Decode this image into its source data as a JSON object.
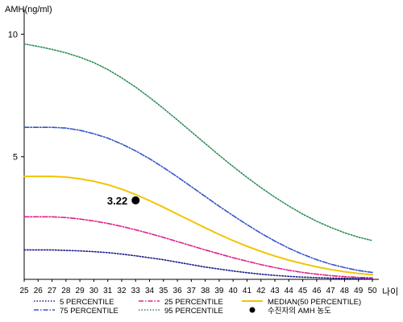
{
  "chart_data": {
    "type": "line",
    "ylabel": "AMH(ng/ml)",
    "xlabel": "나이",
    "ylim": [
      0,
      11
    ],
    "yticks": [
      5,
      10
    ],
    "ytick_labels": [
      "5",
      "10"
    ],
    "xlim": [
      25,
      50
    ],
    "x": [
      25,
      26,
      27,
      28,
      29,
      30,
      31,
      32,
      33,
      34,
      35,
      36,
      37,
      38,
      39,
      40,
      41,
      42,
      43,
      44,
      45,
      46,
      47,
      48,
      49,
      50
    ],
    "xtick_labels": [
      "25",
      "26",
      "27",
      "28",
      "29",
      "30",
      "31",
      "32",
      "33",
      "34",
      "35",
      "36",
      "37",
      "38",
      "39",
      "40",
      "41",
      "42",
      "43",
      "44",
      "45",
      "46",
      "47",
      "48",
      "49",
      "50"
    ],
    "grid": false,
    "legend_position": "bottom",
    "series": [
      {
        "name": "5 PERCENTILE",
        "color": "#1a1a8c",
        "style": "dotted",
        "values": [
          1.2,
          1.2,
          1.2,
          1.18,
          1.16,
          1.13,
          1.09,
          1.03,
          0.96,
          0.88,
          0.8,
          0.7,
          0.6,
          0.5,
          0.42,
          0.34,
          0.27,
          0.21,
          0.16,
          0.12,
          0.09,
          0.07,
          0.05,
          0.04,
          0.03,
          0.02
        ]
      },
      {
        "name": "25 PERCENTILE",
        "color": "#e0208a",
        "style": "dash-dot",
        "values": [
          2.55,
          2.55,
          2.55,
          2.52,
          2.46,
          2.38,
          2.28,
          2.16,
          2.02,
          1.87,
          1.71,
          1.54,
          1.37,
          1.2,
          1.04,
          0.88,
          0.74,
          0.6,
          0.48,
          0.37,
          0.28,
          0.21,
          0.15,
          0.11,
          0.08,
          0.06
        ]
      },
      {
        "name": "75 PERCENTILE",
        "color": "#3355cc",
        "style": "dash-dot",
        "values": [
          6.2,
          6.2,
          6.2,
          6.17,
          6.08,
          5.94,
          5.76,
          5.52,
          5.24,
          4.92,
          4.56,
          4.18,
          3.78,
          3.38,
          2.98,
          2.6,
          2.23,
          1.88,
          1.56,
          1.27,
          1.02,
          0.8,
          0.62,
          0.48,
          0.36,
          0.28
        ]
      },
      {
        "name": "95 PERCENTILE",
        "color": "#2e8b57",
        "style": "dotted",
        "values": [
          9.6,
          9.5,
          9.38,
          9.24,
          9.06,
          8.84,
          8.56,
          8.22,
          7.84,
          7.42,
          6.97,
          6.5,
          6.02,
          5.54,
          5.06,
          4.6,
          4.16,
          3.74,
          3.35,
          2.99,
          2.66,
          2.37,
          2.12,
          1.9,
          1.72,
          1.58
        ]
      },
      {
        "name": "MEDIAN(50 PERCENTILE)",
        "color": "#f2c400",
        "style": "solid",
        "values": [
          4.2,
          4.2,
          4.2,
          4.17,
          4.1,
          4.0,
          3.86,
          3.68,
          3.46,
          3.21,
          2.94,
          2.66,
          2.38,
          2.1,
          1.83,
          1.58,
          1.35,
          1.14,
          0.95,
          0.78,
          0.64,
          0.51,
          0.4,
          0.31,
          0.24,
          0.19
        ]
      }
    ],
    "marker": {
      "name": "수진자의 AMH 농도",
      "x": 33,
      "y": 3.22,
      "label": "3.22",
      "color": "#000000"
    }
  }
}
